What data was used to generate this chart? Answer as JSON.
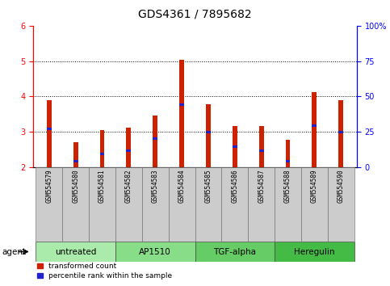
{
  "title": "GDS4361 / 7895682",
  "samples": [
    "GSM554579",
    "GSM554580",
    "GSM554581",
    "GSM554582",
    "GSM554583",
    "GSM554584",
    "GSM554585",
    "GSM554586",
    "GSM554587",
    "GSM554588",
    "GSM554589",
    "GSM554590"
  ],
  "red_values": [
    3.9,
    2.72,
    3.05,
    3.12,
    3.47,
    5.03,
    3.78,
    3.17,
    3.17,
    2.77,
    4.12,
    3.9
  ],
  "blue_values": [
    3.08,
    2.18,
    2.38,
    2.47,
    2.82,
    3.78,
    3.0,
    2.58,
    2.47,
    2.18,
    3.17,
    3.0
  ],
  "ymin": 2.0,
  "ymax": 6.0,
  "yticks": [
    2,
    3,
    4,
    5,
    6
  ],
  "right_yticks": [
    0,
    25,
    50,
    75,
    100
  ],
  "dotted_lines": [
    3,
    4,
    5
  ],
  "agents": [
    {
      "label": "untreated",
      "indices": [
        0,
        1,
        2
      ],
      "color": "#aaeaaa"
    },
    {
      "label": "AP1510",
      "indices": [
        3,
        4,
        5
      ],
      "color": "#88dd88"
    },
    {
      "label": "TGF-alpha",
      "indices": [
        6,
        7,
        8
      ],
      "color": "#66cc66"
    },
    {
      "label": "Heregulin",
      "indices": [
        9,
        10,
        11
      ],
      "color": "#44bb44"
    }
  ],
  "bar_color_red": "#cc2200",
  "bar_color_blue": "#2222cc",
  "bar_width": 0.18,
  "legend_red_label": "transformed count",
  "legend_blue_label": "percentile rank within the sample",
  "title_fontsize": 10,
  "tick_fontsize": 7,
  "agent_fontsize": 7.5,
  "sample_fontsize": 5.5
}
